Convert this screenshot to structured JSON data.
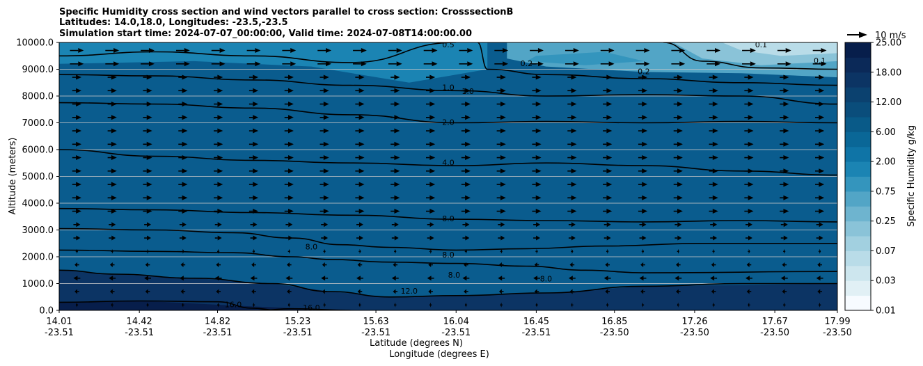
{
  "chart_data": {
    "type": "contour",
    "title_lines": [
      "Specific Humidity cross section and wind vectors parallel to cross section: CrosssectionB",
      "Latitudes: 14.0,18.0, Longitudes: -23.5,-23.5",
      "Simulation start time: 2024-07-07_00:00:00, Valid time: 2024-07-08T14:00:00.00"
    ],
    "ylabel": "Altitude (meters)",
    "xlabel_lat": "Latitude (degrees N)",
    "xlabel_lon": "Longitude (degrees E)",
    "ylim": [
      0,
      10000
    ],
    "y_ticks": [
      "0.0",
      "1000.0",
      "2000.0",
      "3000.0",
      "4000.0",
      "5000.0",
      "6000.0",
      "7000.0",
      "8000.0",
      "9000.0",
      "10000.0"
    ],
    "x_lat_ticks": [
      "14.01",
      "14.42",
      "14.82",
      "15.23",
      "15.63",
      "16.04",
      "16.45",
      "16.85",
      "17.26",
      "17.67",
      "17.99"
    ],
    "x_lon_ticks": [
      "-23.51",
      "-23.51",
      "-23.51",
      "-23.51",
      "-23.51",
      "-23.51",
      "-23.51",
      "-23.50",
      "-23.50",
      "-23.50",
      "-23.50"
    ],
    "colorbar": {
      "label": "Specific Humidity g/kg",
      "tick_labels": [
        "0.01",
        "0.03",
        "0.07",
        "0.25",
        "0.75",
        "2.00",
        "6.00",
        "12.00",
        "18.00",
        "25.00"
      ],
      "levels": [
        0.01,
        0.02,
        0.03,
        0.05,
        0.07,
        0.1,
        0.25,
        0.5,
        0.75,
        1,
        2,
        3,
        6,
        9,
        12,
        15,
        18,
        21,
        25
      ],
      "colors": [
        "#f7fbff",
        "#e1f0f5",
        "#cde6ee",
        "#b9dce8",
        "#a2d0e0",
        "#8ac3d8",
        "#6eb4cf",
        "#52a5c6",
        "#3495bd",
        "#1b84b3",
        "#0f74a6",
        "#0a6797",
        "#095a88",
        "#0a4d7b",
        "#0b416f",
        "#0c3464",
        "#0b2958",
        "#071e4b"
      ]
    },
    "wind_key": {
      "label": "10 m/s",
      "speed": 10
    },
    "contours": [
      {
        "level": 16.0,
        "label": "16.0",
        "points": [
          [
            14.01,
            300
          ],
          [
            14.42,
            350
          ],
          [
            14.82,
            320
          ],
          [
            15.0,
            80
          ],
          [
            15.13,
            0
          ]
        ]
      },
      {
        "level": 16.0,
        "label": "16.0",
        "points": [
          [
            15.03,
            0
          ],
          [
            15.2,
            60
          ],
          [
            15.5,
            0
          ]
        ]
      },
      {
        "level": 12.0,
        "label": "12.0",
        "points": [
          [
            14.01,
            1500
          ],
          [
            14.3,
            1350
          ],
          [
            14.7,
            1200
          ],
          [
            15.1,
            1000
          ],
          [
            15.4,
            700
          ],
          [
            15.7,
            500
          ],
          [
            16.04,
            550
          ],
          [
            16.5,
            650
          ],
          [
            17.0,
            900
          ],
          [
            17.5,
            1000
          ],
          [
            17.99,
            1000
          ]
        ]
      },
      {
        "level": 8.0,
        "label": "8.0",
        "points": [
          [
            14.01,
            2250
          ],
          [
            14.5,
            2200
          ],
          [
            14.9,
            2150
          ],
          [
            15.2,
            2000
          ],
          [
            15.4,
            1900
          ],
          [
            15.7,
            1800
          ],
          [
            16.04,
            1750
          ],
          [
            16.4,
            1650
          ],
          [
            16.7,
            1500
          ],
          [
            17.0,
            1400
          ],
          [
            17.99,
            1450
          ]
        ]
      },
      {
        "level": 8.0,
        "label": "8.0",
        "points": [
          [
            14.01,
            3050
          ],
          [
            14.5,
            3000
          ],
          [
            14.9,
            2900
          ],
          [
            15.2,
            2700
          ],
          [
            15.45,
            2450
          ],
          [
            15.7,
            2350
          ],
          [
            16.04,
            2250
          ],
          [
            16.4,
            2300
          ],
          [
            16.8,
            2400
          ],
          [
            17.3,
            2500
          ],
          [
            17.99,
            2500
          ]
        ]
      },
      {
        "level": 8.0,
        "label": "8.0",
        "points": [
          [
            14.01,
            3800
          ],
          [
            14.5,
            3750
          ],
          [
            15.0,
            3650
          ],
          [
            15.5,
            3550
          ],
          [
            16.04,
            3400
          ],
          [
            16.5,
            3350
          ],
          [
            17.0,
            3300
          ],
          [
            17.5,
            3350
          ],
          [
            17.99,
            3300
          ]
        ]
      },
      {
        "level": 4.0,
        "label": "4.0",
        "points": [
          [
            14.01,
            6000
          ],
          [
            14.5,
            5750
          ],
          [
            15.0,
            5600
          ],
          [
            15.5,
            5500
          ],
          [
            16.04,
            5400
          ],
          [
            16.5,
            5500
          ],
          [
            17.0,
            5400
          ],
          [
            17.5,
            5200
          ],
          [
            17.99,
            5050
          ]
        ]
      },
      {
        "level": 2.0,
        "label": "2.0",
        "points": [
          [
            14.01,
            7750
          ],
          [
            14.5,
            7700
          ],
          [
            15.0,
            7550
          ],
          [
            15.5,
            7300
          ],
          [
            16.04,
            7000
          ],
          [
            16.5,
            7050
          ],
          [
            17.0,
            7000
          ],
          [
            17.5,
            7050
          ],
          [
            17.99,
            7000
          ]
        ]
      },
      {
        "level": 1.0,
        "label": "1.0",
        "points": [
          [
            14.01,
            8800
          ],
          [
            14.5,
            8750
          ],
          [
            15.0,
            8600
          ],
          [
            15.5,
            8400
          ],
          [
            16.04,
            8200
          ],
          [
            16.5,
            8000
          ],
          [
            17.0,
            8050
          ],
          [
            17.5,
            8000
          ],
          [
            17.99,
            7700
          ]
        ]
      },
      {
        "level": 0.5,
        "label": "0.5",
        "points": [
          [
            14.01,
            9500
          ],
          [
            14.5,
            9650
          ],
          [
            15.0,
            9500
          ],
          [
            15.5,
            9250
          ],
          [
            16.04,
            10000
          ]
        ]
      },
      {
        "level": 0.2,
        "label": "0.2",
        "points": [
          [
            16.15,
            10000
          ],
          [
            16.2,
            9000
          ],
          [
            16.5,
            8800
          ],
          [
            17.0,
            8650
          ],
          [
            17.5,
            8500
          ],
          [
            17.99,
            8400
          ]
        ]
      },
      {
        "level": 0.1,
        "label": "0.1",
        "points": [
          [
            17.1,
            10000
          ],
          [
            17.3,
            9300
          ],
          [
            17.6,
            9050
          ],
          [
            17.99,
            9000
          ]
        ]
      }
    ],
    "contour_labels": [
      {
        "text": "16.0",
        "x": 14.9,
        "y": 200
      },
      {
        "text": "16.0",
        "x": 15.3,
        "y": 80
      },
      {
        "text": "12.0",
        "x": 15.8,
        "y": 700
      },
      {
        "text": "8.0",
        "x": 16.03,
        "y": 1300
      },
      {
        "text": "8.0",
        "x": 16.5,
        "y": 1150
      },
      {
        "text": "8.0",
        "x": 16.0,
        "y": 2050
      },
      {
        "text": "8.0",
        "x": 15.3,
        "y": 2350
      },
      {
        "text": "8.0",
        "x": 16.0,
        "y": 3400
      },
      {
        "text": "4.0",
        "x": 16.0,
        "y": 5500
      },
      {
        "text": "2.0",
        "x": 16.0,
        "y": 7000
      },
      {
        "text": "1.0",
        "x": 16.0,
        "y": 8300
      },
      {
        "text": "1.0",
        "x": 16.1,
        "y": 8150
      },
      {
        "text": "0.5",
        "x": 16.0,
        "y": 9900
      },
      {
        "text": "0.2",
        "x": 16.4,
        "y": 9200
      },
      {
        "text": "0.2",
        "x": 17.0,
        "y": 8900
      },
      {
        "text": "0.1",
        "x": 17.6,
        "y": 9900
      },
      {
        "text": "0.1",
        "x": 17.9,
        "y": 9300
      }
    ],
    "wind_rows": [
      {
        "altitude": 9700,
        "u": 6
      },
      {
        "altitude": 9200,
        "u": 6
      },
      {
        "altitude": 8700,
        "u": 4
      },
      {
        "altitude": 8200,
        "u": 4
      },
      {
        "altitude": 7700,
        "u": 4
      },
      {
        "altitude": 7200,
        "u": 4
      },
      {
        "altitude": 6700,
        "u": 4
      },
      {
        "altitude": 6200,
        "u": 4
      },
      {
        "altitude": 5700,
        "u": 4
      },
      {
        "altitude": 5200,
        "u": 4
      },
      {
        "altitude": 4700,
        "u": 4
      },
      {
        "altitude": 4200,
        "u": 4
      },
      {
        "altitude": 3700,
        "u": 4
      },
      {
        "altitude": 3200,
        "u": 3
      },
      {
        "altitude": 2700,
        "u": 3
      },
      {
        "altitude": 2200,
        "u": 1
      },
      {
        "altitude": 1700,
        "u": -2
      },
      {
        "altitude": 1200,
        "u": -3
      },
      {
        "altitude": 700,
        "u": -2
      },
      {
        "altitude": 200,
        "u": -1
      }
    ]
  }
}
